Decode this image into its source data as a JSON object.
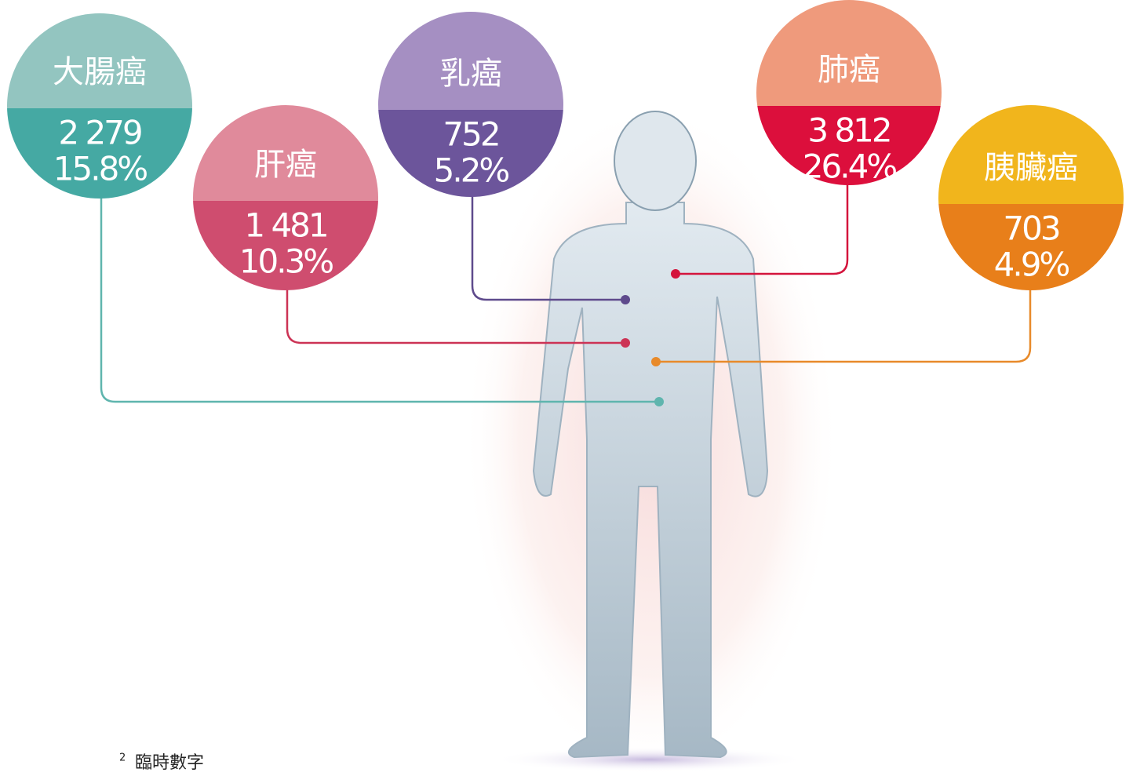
{
  "items": [
    {
      "name": "大腸癌",
      "count": "2 279",
      "percent": "15.8%"
    },
    {
      "name": "肝癌",
      "count": "1 481",
      "percent": "10.3%"
    },
    {
      "name": "乳癌",
      "count": "752",
      "percent": "5.2%"
    },
    {
      "name": "肺癌",
      "count": "3 812",
      "percent": "26.4%"
    },
    {
      "name": "胰臟癌",
      "count": "703",
      "percent": "4.9%"
    }
  ],
  "footnote": {
    "marker": "2",
    "text": "臨時數字"
  }
}
